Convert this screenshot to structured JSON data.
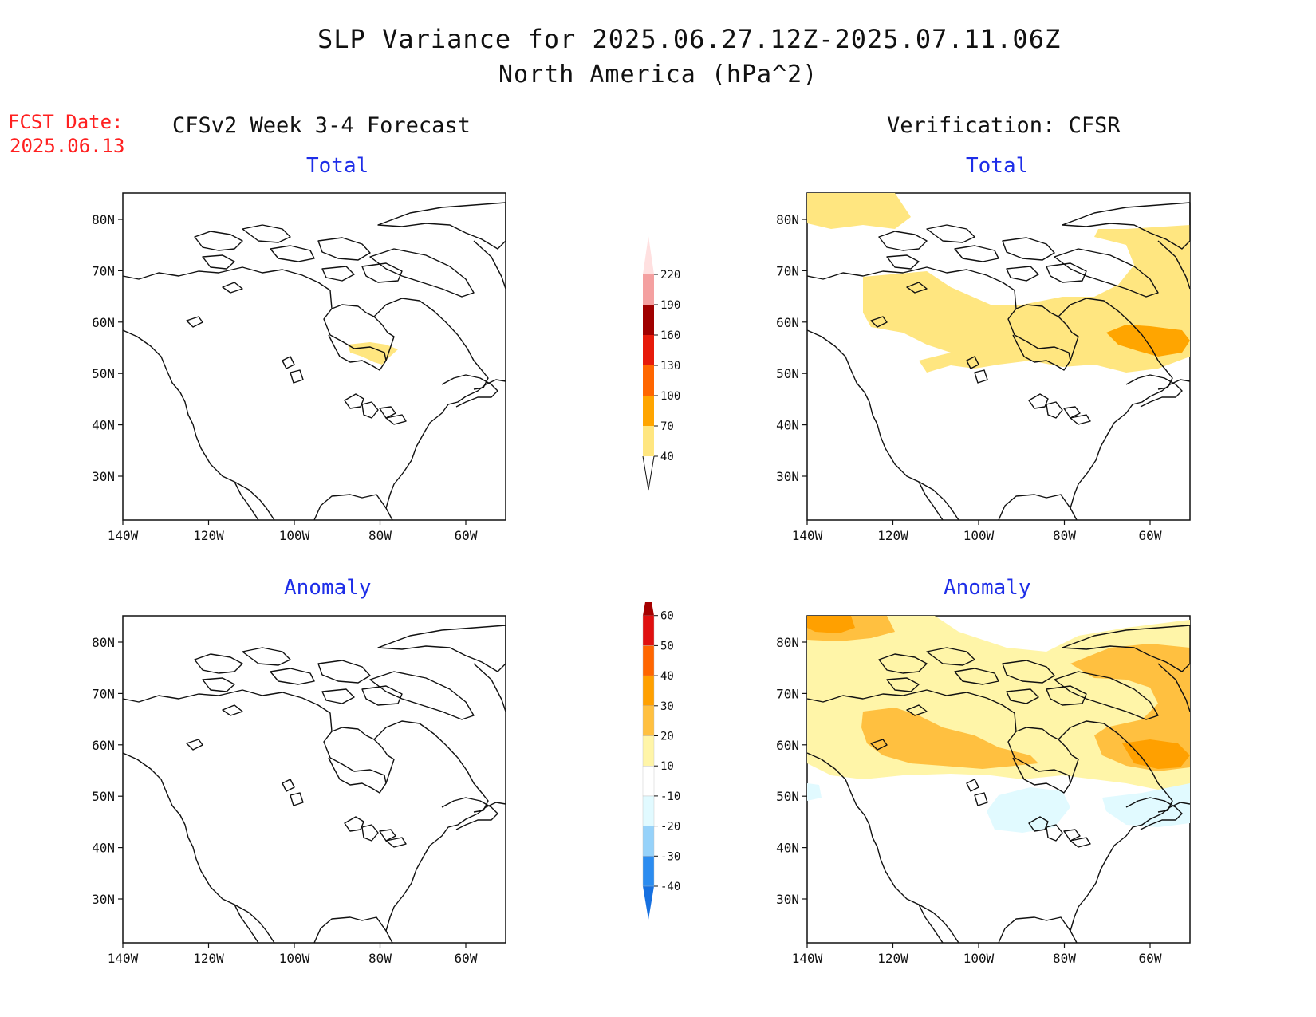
{
  "header": {
    "title": "SLP Variance for 2025.06.27.12Z-2025.07.11.06Z",
    "subtitle": "North America (hPa^2)"
  },
  "fcst": {
    "line1": "FCST Date:",
    "line2": "2025.06.13"
  },
  "columns": {
    "left": "CFSv2 Week 3-4 Forecast",
    "right": "Verification: CFSR"
  },
  "panels": [
    {
      "id": "fc-total",
      "title": "Total"
    },
    {
      "id": "ver-total",
      "title": "Total"
    },
    {
      "id": "fc-anom",
      "title": "Anomaly"
    },
    {
      "id": "ver-anom",
      "title": "Anomaly"
    }
  ],
  "axes": {
    "lat_labels": [
      "30N",
      "40N",
      "50N",
      "60N",
      "70N",
      "80N"
    ],
    "lon_labels": [
      "140W",
      "120W",
      "100W",
      "80W",
      "60W"
    ]
  },
  "colorbars": {
    "total": {
      "labels": [
        "40",
        "70",
        "100",
        "130",
        "160",
        "190",
        "220"
      ],
      "colors": [
        "#ffe680",
        "#ffa500",
        "#ff6600",
        "#e61a0a",
        "#a00000",
        "#f4a0a0",
        "#ffe0e0"
      ]
    },
    "anomaly": {
      "labels": [
        "-40",
        "-30",
        "-20",
        "-10",
        "10",
        "20",
        "30",
        "40",
        "50",
        "60"
      ],
      "colors": [
        "#1670e0",
        "#2b8cf0",
        "#96d2fa",
        "#e1faff",
        "#ffffff",
        "#fff5a8",
        "#ffc040",
        "#ffa000",
        "#ff6600",
        "#e01010",
        "#a50000"
      ]
    }
  },
  "colors": {
    "fcst_text": "#ff2020",
    "panel_title": "#1e2ee8"
  }
}
